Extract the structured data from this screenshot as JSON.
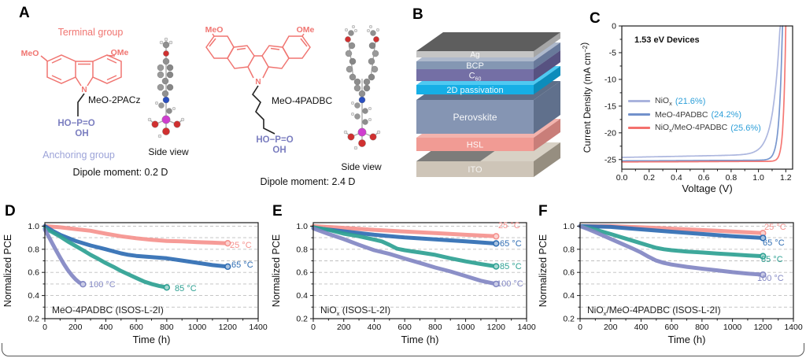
{
  "panels": {
    "a": "A",
    "b": "B",
    "c": "C",
    "d": "D",
    "e": "E",
    "f": "F"
  },
  "panel_a": {
    "terminal_group": "Terminal group",
    "anchoring_group": "Anchoring group",
    "colors": {
      "terminal": "#F07571",
      "anchoring": "#9CA3D8",
      "pa": "#7B7EC0"
    },
    "mol1": {
      "meo": "MeO",
      "ome": "OMe",
      "n": "N",
      "name": "MeO-2PACz",
      "pa_top": "HO−P=O",
      "pa_bottom": "OH",
      "side_view": "Side view",
      "dipole": "Dipole moment: 0.2 D"
    },
    "mol2": {
      "meo": "MeO",
      "ome": "OMe",
      "n": "N",
      "name": "MeO-4PADBC",
      "pa_top": "HO−P=O",
      "pa_bottom": "OH",
      "side_view": "Side view",
      "dipole": "Dipole moment: 2.4 D"
    }
  },
  "panel_b": {
    "top_face_color": "#5E5E5E",
    "layers": [
      {
        "base": "Ag",
        "sub": "",
        "front": "#C5C5C5",
        "top": "#D8D8D8",
        "side": "#A6A6A6",
        "y": 65,
        "h": 8
      },
      {
        "base": "BCP",
        "sub": "",
        "front": "#8497B3",
        "top": "#AEB9CC",
        "side": "#68799A",
        "y": 78,
        "h": 10
      },
      {
        "base": "C",
        "sub": "60",
        "front": "#746FA5",
        "top": "#9B92C8",
        "side": "#575281",
        "y": 88,
        "h": 15
      },
      {
        "base": "2D passivation",
        "sub": "",
        "front": "#16AFE6",
        "top": "#4FC9F1",
        "side": "#0C8CBB",
        "y": 108,
        "h": 12
      },
      {
        "base": "Perovskite",
        "sub": "",
        "front": "#8595B3",
        "top": "#5E6E88",
        "side": "#60708C",
        "y": 127,
        "h": 43
      },
      {
        "base": "HSL",
        "sub": "",
        "front": "#F19B94",
        "top": "#F3B3AD",
        "side": "#C97E79",
        "y": 175,
        "h": 17
      },
      {
        "base": "ITO",
        "sub": "",
        "front": "#CEC5B8",
        "top": "#D8D1C5",
        "side": "#968E80",
        "y": 205,
        "h": 20
      }
    ]
  },
  "panel_c": {
    "title": "1.53 eV Devices",
    "name_color": "#3c3c3c",
    "pct_color": "#2D9FD9",
    "legend": [
      {
        "base": "NiO",
        "sub": "x",
        "rest": "",
        "pct": "(21.6%)",
        "color": "#A9B3DD"
      },
      {
        "base": "MeO-4PADBC",
        "sub": "",
        "rest": "",
        "pct": "(24.2%)",
        "color": "#7291CB"
      },
      {
        "base": "NiO",
        "sub": "x",
        "rest": "/MeO-4PADBC",
        "pct": "(25.6%)",
        "color": "#F4716D"
      }
    ]
  },
  "stability_labels": {
    "d": {
      "base": "MeO-4PADBC",
      "sub": "",
      "rest": " (ISOS-L-2I)"
    },
    "e": {
      "base": "NiO",
      "sub": "x",
      "rest": " (ISOS-L-2I)"
    },
    "f": {
      "base": "NiO",
      "sub": "x",
      "rest": "/MeO-4PADBC (ISOS-L-2I)"
    }
  },
  "chart_data": [
    {
      "id": "c",
      "type": "line",
      "kind": "jv",
      "title": "1.53 eV Devices",
      "xlabel": "Voltage (V)",
      "ylabel_parts": [
        {
          "t": "Current Density (mA cm"
        },
        {
          "t": "−2",
          "sup": true
        },
        {
          "t": ")"
        }
      ],
      "xlim": [
        0,
        1.25
      ],
      "ylim": [
        -26.8,
        0
      ],
      "xticks": [
        0,
        0.2,
        0.4,
        0.6,
        0.8,
        1.0,
        1.2
      ],
      "yticks": [
        0,
        -5,
        -10,
        -15,
        -20,
        -25
      ],
      "xminor": [
        0.1,
        0.3,
        0.5,
        0.7,
        0.9,
        1.1
      ],
      "yminor": [
        -2.5,
        -7.5,
        -12.5,
        -17.5,
        -22.5
      ],
      "grid": false,
      "legend_position": "left-middle",
      "series": [
        {
          "name": "NiOx",
          "efficiency": "21.6%",
          "color": "#A9B3DD",
          "jsc": -24.6,
          "voc": 1.158,
          "knee": 0.05,
          "slope": 0.5
        },
        {
          "name": "MeO-4PADBC",
          "efficiency": "24.2%",
          "color": "#7291CB",
          "jsc": -25.25,
          "voc": 1.175,
          "knee": 0.022,
          "slope": 0.12
        },
        {
          "name": "NiOx/MeO-4PADBC",
          "efficiency": "25.6%",
          "color": "#F4716D",
          "jsc": -25.45,
          "voc": 1.2,
          "knee": 0.016,
          "slope": 0.1
        }
      ]
    },
    {
      "id": "d",
      "type": "line",
      "kind": "decay",
      "title": "MeO-4PADBC (ISOS-L-2I)",
      "xlabel": "Time (h)",
      "ylabel": "Normalized PCE",
      "xlim": [
        0,
        1400
      ],
      "ylim": [
        0.2,
        1.03
      ],
      "xticks": [
        0,
        200,
        400,
        600,
        800,
        1000,
        1200,
        1400
      ],
      "yticks": [
        0.2,
        0.4,
        0.6,
        0.8,
        1.0
      ],
      "xminor": [
        100,
        300,
        500,
        700,
        900,
        1100,
        1300
      ],
      "yminor": [
        0.3,
        0.5,
        0.7,
        0.9
      ],
      "ygrid": [
        0.3,
        0.4,
        0.5,
        0.6,
        0.7,
        0.8,
        0.9,
        1.0
      ],
      "grid": true,
      "series": [
        {
          "name": "25 °C",
          "color": "#F5928E",
          "label_pos": [
            292,
            57
          ],
          "points": [
            [
              0,
              1.0
            ],
            [
              100,
              0.99
            ],
            [
              200,
              0.975
            ],
            [
              300,
              0.96
            ],
            [
              400,
              0.935
            ],
            [
              500,
              0.912
            ],
            [
              600,
              0.895
            ],
            [
              700,
              0.882
            ],
            [
              800,
              0.872
            ],
            [
              900,
              0.868
            ],
            [
              1000,
              0.862
            ],
            [
              1100,
              0.857
            ],
            [
              1200,
              0.852
            ]
          ]
        },
        {
          "name": "65 °C",
          "color": "#2F6DB3",
          "label_pos": [
            294,
            82
          ],
          "points": [
            [
              0,
              1.0
            ],
            [
              50,
              0.96
            ],
            [
              100,
              0.925
            ],
            [
              200,
              0.873
            ],
            [
              300,
              0.833
            ],
            [
              400,
              0.8
            ],
            [
              500,
              0.765
            ],
            [
              550,
              0.752
            ],
            [
              600,
              0.743
            ],
            [
              700,
              0.732
            ],
            [
              800,
              0.722
            ],
            [
              900,
              0.703
            ],
            [
              1000,
              0.683
            ],
            [
              1100,
              0.663
            ],
            [
              1200,
              0.65
            ]
          ]
        },
        {
          "name": "85 °C",
          "color": "#2EA193",
          "label_pos": [
            222,
            112
          ],
          "points": [
            [
              0,
              0.98
            ],
            [
              50,
              0.947
            ],
            [
              100,
              0.91
            ],
            [
              150,
              0.868
            ],
            [
              200,
              0.83
            ],
            [
              250,
              0.792
            ],
            [
              300,
              0.752
            ],
            [
              350,
              0.717
            ],
            [
              400,
              0.68
            ],
            [
              450,
              0.648
            ],
            [
              500,
              0.612
            ],
            [
              550,
              0.582
            ],
            [
              600,
              0.552
            ],
            [
              650,
              0.522
            ],
            [
              700,
              0.5
            ],
            [
              750,
              0.483
            ],
            [
              800,
              0.47
            ]
          ]
        },
        {
          "name": "100 °C",
          "color": "#8287C3",
          "label_pos": [
            113,
            107
          ],
          "points": [
            [
              0,
              0.97
            ],
            [
              25,
              0.91
            ],
            [
              50,
              0.848
            ],
            [
              75,
              0.787
            ],
            [
              100,
              0.728
            ],
            [
              125,
              0.672
            ],
            [
              150,
              0.622
            ],
            [
              175,
              0.578
            ],
            [
              200,
              0.542
            ],
            [
              225,
              0.513
            ],
            [
              250,
              0.498
            ]
          ]
        }
      ]
    },
    {
      "id": "e",
      "type": "line",
      "kind": "decay",
      "title": "NiOx (ISOS-L-2I)",
      "xlabel": "Time (h)",
      "ylabel": "Normalized PCE",
      "xlim": [
        0,
        1400
      ],
      "ylim": [
        0.2,
        1.03
      ],
      "xticks": [
        0,
        200,
        400,
        600,
        800,
        1000,
        1200,
        1400
      ],
      "yticks": [
        0.2,
        0.4,
        0.6,
        0.8,
        1.0
      ],
      "xminor": [
        100,
        300,
        500,
        700,
        900,
        1100,
        1300
      ],
      "yminor": [
        0.3,
        0.5,
        0.7,
        0.9
      ],
      "ygrid": [
        0.3,
        0.4,
        0.5,
        0.6,
        0.7,
        0.8,
        0.9,
        1.0
      ],
      "grid": true,
      "series": [
        {
          "name": "25 °C",
          "color": "#F5928E",
          "label_pos": [
            292,
            32
          ],
          "points": [
            [
              0,
              1.0
            ],
            [
              200,
              0.985
            ],
            [
              400,
              0.968
            ],
            [
              600,
              0.953
            ],
            [
              800,
              0.94
            ],
            [
              1000,
              0.925
            ],
            [
              1200,
              0.912
            ]
          ]
        },
        {
          "name": "65 °C",
          "color": "#2F6DB3",
          "label_pos": [
            294,
            55
          ],
          "points": [
            [
              0,
              0.985
            ],
            [
              200,
              0.955
            ],
            [
              400,
              0.925
            ],
            [
              600,
              0.902
            ],
            [
              800,
              0.885
            ],
            [
              1000,
              0.868
            ],
            [
              1200,
              0.85
            ]
          ]
        },
        {
          "name": "85 °C",
          "color": "#2EA193",
          "label_pos": [
            294,
            84
          ],
          "points": [
            [
              0,
              0.99
            ],
            [
              100,
              0.968
            ],
            [
              200,
              0.935
            ],
            [
              300,
              0.912
            ],
            [
              400,
              0.883
            ],
            [
              450,
              0.868
            ],
            [
              500,
              0.838
            ],
            [
              550,
              0.805
            ],
            [
              600,
              0.792
            ],
            [
              650,
              0.782
            ],
            [
              700,
              0.772
            ],
            [
              800,
              0.752
            ],
            [
              900,
              0.722
            ],
            [
              1000,
              0.695
            ],
            [
              1100,
              0.672
            ],
            [
              1200,
              0.652
            ]
          ]
        },
        {
          "name": "100 °C",
          "color": "#8287C3",
          "label_pos": [
            290,
            106
          ],
          "points": [
            [
              0,
              0.98
            ],
            [
              100,
              0.932
            ],
            [
              200,
              0.888
            ],
            [
              300,
              0.838
            ],
            [
              400,
              0.792
            ],
            [
              500,
              0.76
            ],
            [
              600,
              0.72
            ],
            [
              700,
              0.682
            ],
            [
              800,
              0.642
            ],
            [
              900,
              0.608
            ],
            [
              1000,
              0.568
            ],
            [
              1100,
              0.528
            ],
            [
              1200,
              0.5
            ]
          ]
        }
      ]
    },
    {
      "id": "f",
      "type": "line",
      "kind": "decay",
      "title": "NiOx/MeO-4PADBC (ISOS-L-2I)",
      "xlabel": "Time (h)",
      "ylabel": "Normalized PCE",
      "xlim": [
        0,
        1400
      ],
      "ylim": [
        0.2,
        1.03
      ],
      "xticks": [
        0,
        200,
        400,
        600,
        800,
        1000,
        1200,
        1400
      ],
      "yticks": [
        0.2,
        0.4,
        0.6,
        0.8,
        1.0
      ],
      "xminor": [
        100,
        300,
        500,
        700,
        900,
        1100,
        1300
      ],
      "yminor": [
        0.3,
        0.5,
        0.7,
        0.9
      ],
      "ygrid": [
        0.3,
        0.4,
        0.5,
        0.6,
        0.7,
        0.8,
        0.9,
        1.0
      ],
      "grid": true,
      "series": [
        {
          "name": "25 °C",
          "color": "#F5928E",
          "label_pos": [
            291,
            34
          ],
          "points": [
            [
              0,
              1.0
            ],
            [
              100,
              1.0
            ],
            [
              200,
              1.0
            ],
            [
              300,
              0.995
            ],
            [
              400,
              0.99
            ],
            [
              500,
              0.985
            ],
            [
              600,
              0.978
            ],
            [
              700,
              0.972
            ],
            [
              800,
              0.966
            ],
            [
              900,
              0.96
            ],
            [
              1000,
              0.954
            ],
            [
              1100,
              0.947
            ],
            [
              1200,
              0.94
            ]
          ]
        },
        {
          "name": "65 °C",
          "color": "#2F6DB3",
          "label_pos": [
            289,
            54
          ],
          "points": [
            [
              0,
              1.0
            ],
            [
              200,
              0.993
            ],
            [
              400,
              0.972
            ],
            [
              600,
              0.952
            ],
            [
              800,
              0.932
            ],
            [
              1000,
              0.913
            ],
            [
              1200,
              0.898
            ]
          ]
        },
        {
          "name": "85 °C",
          "color": "#2EA193",
          "label_pos": [
            287,
            75
          ],
          "points": [
            [
              0,
              1.0
            ],
            [
              100,
              0.97
            ],
            [
              200,
              0.932
            ],
            [
              300,
              0.892
            ],
            [
              400,
              0.852
            ],
            [
              450,
              0.832
            ],
            [
              500,
              0.812
            ],
            [
              550,
              0.8
            ],
            [
              600,
              0.792
            ],
            [
              700,
              0.78
            ],
            [
              800,
              0.772
            ],
            [
              900,
              0.763
            ],
            [
              1000,
              0.755
            ],
            [
              1100,
              0.747
            ],
            [
              1200,
              0.74
            ]
          ]
        },
        {
          "name": "100 °C",
          "color": "#8287C3",
          "label_pos": [
            282,
            99
          ],
          "points": [
            [
              0,
              1.0
            ],
            [
              50,
              0.975
            ],
            [
              100,
              0.948
            ],
            [
              200,
              0.89
            ],
            [
              300,
              0.832
            ],
            [
              350,
              0.803
            ],
            [
              400,
              0.772
            ],
            [
              450,
              0.735
            ],
            [
              500,
              0.702
            ],
            [
              550,
              0.682
            ],
            [
              600,
              0.668
            ],
            [
              700,
              0.648
            ],
            [
              800,
              0.632
            ],
            [
              900,
              0.618
            ],
            [
              1000,
              0.602
            ],
            [
              1100,
              0.59
            ],
            [
              1200,
              0.58
            ]
          ]
        }
      ]
    }
  ]
}
